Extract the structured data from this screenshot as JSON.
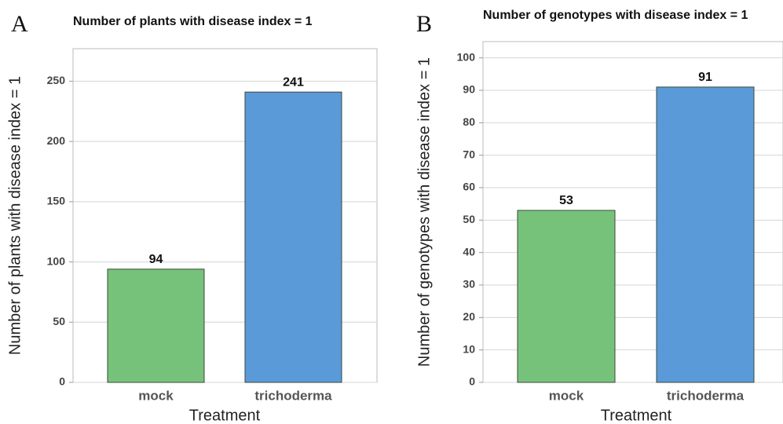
{
  "chart_data": [
    {
      "type": "bar",
      "panel": "A",
      "title": "Number of plants with disease index = 1",
      "ylabel": "Number of plants with disease index = 1",
      "xlabel": "Treatment",
      "categories": [
        "mock",
        "trichoderma"
      ],
      "values": [
        94,
        241
      ],
      "colors": [
        "#77c27a",
        "#5a9ad9"
      ],
      "ylim": [
        0,
        277
      ],
      "yticks": [
        0,
        50,
        100,
        150,
        200,
        250
      ],
      "grid": true
    },
    {
      "type": "bar",
      "panel": "B",
      "title": "Number of genotypes with disease index = 1",
      "ylabel": "Number of genotypes with disease index = 1",
      "xlabel": "Treatment",
      "categories": [
        "mock",
        "trichoderma"
      ],
      "values": [
        53,
        91
      ],
      "colors": [
        "#77c27a",
        "#5a9ad9"
      ],
      "ylim": [
        0,
        105
      ],
      "yticks": [
        0,
        10,
        20,
        30,
        40,
        50,
        60,
        70,
        80,
        90,
        100
      ],
      "grid": true
    }
  ]
}
